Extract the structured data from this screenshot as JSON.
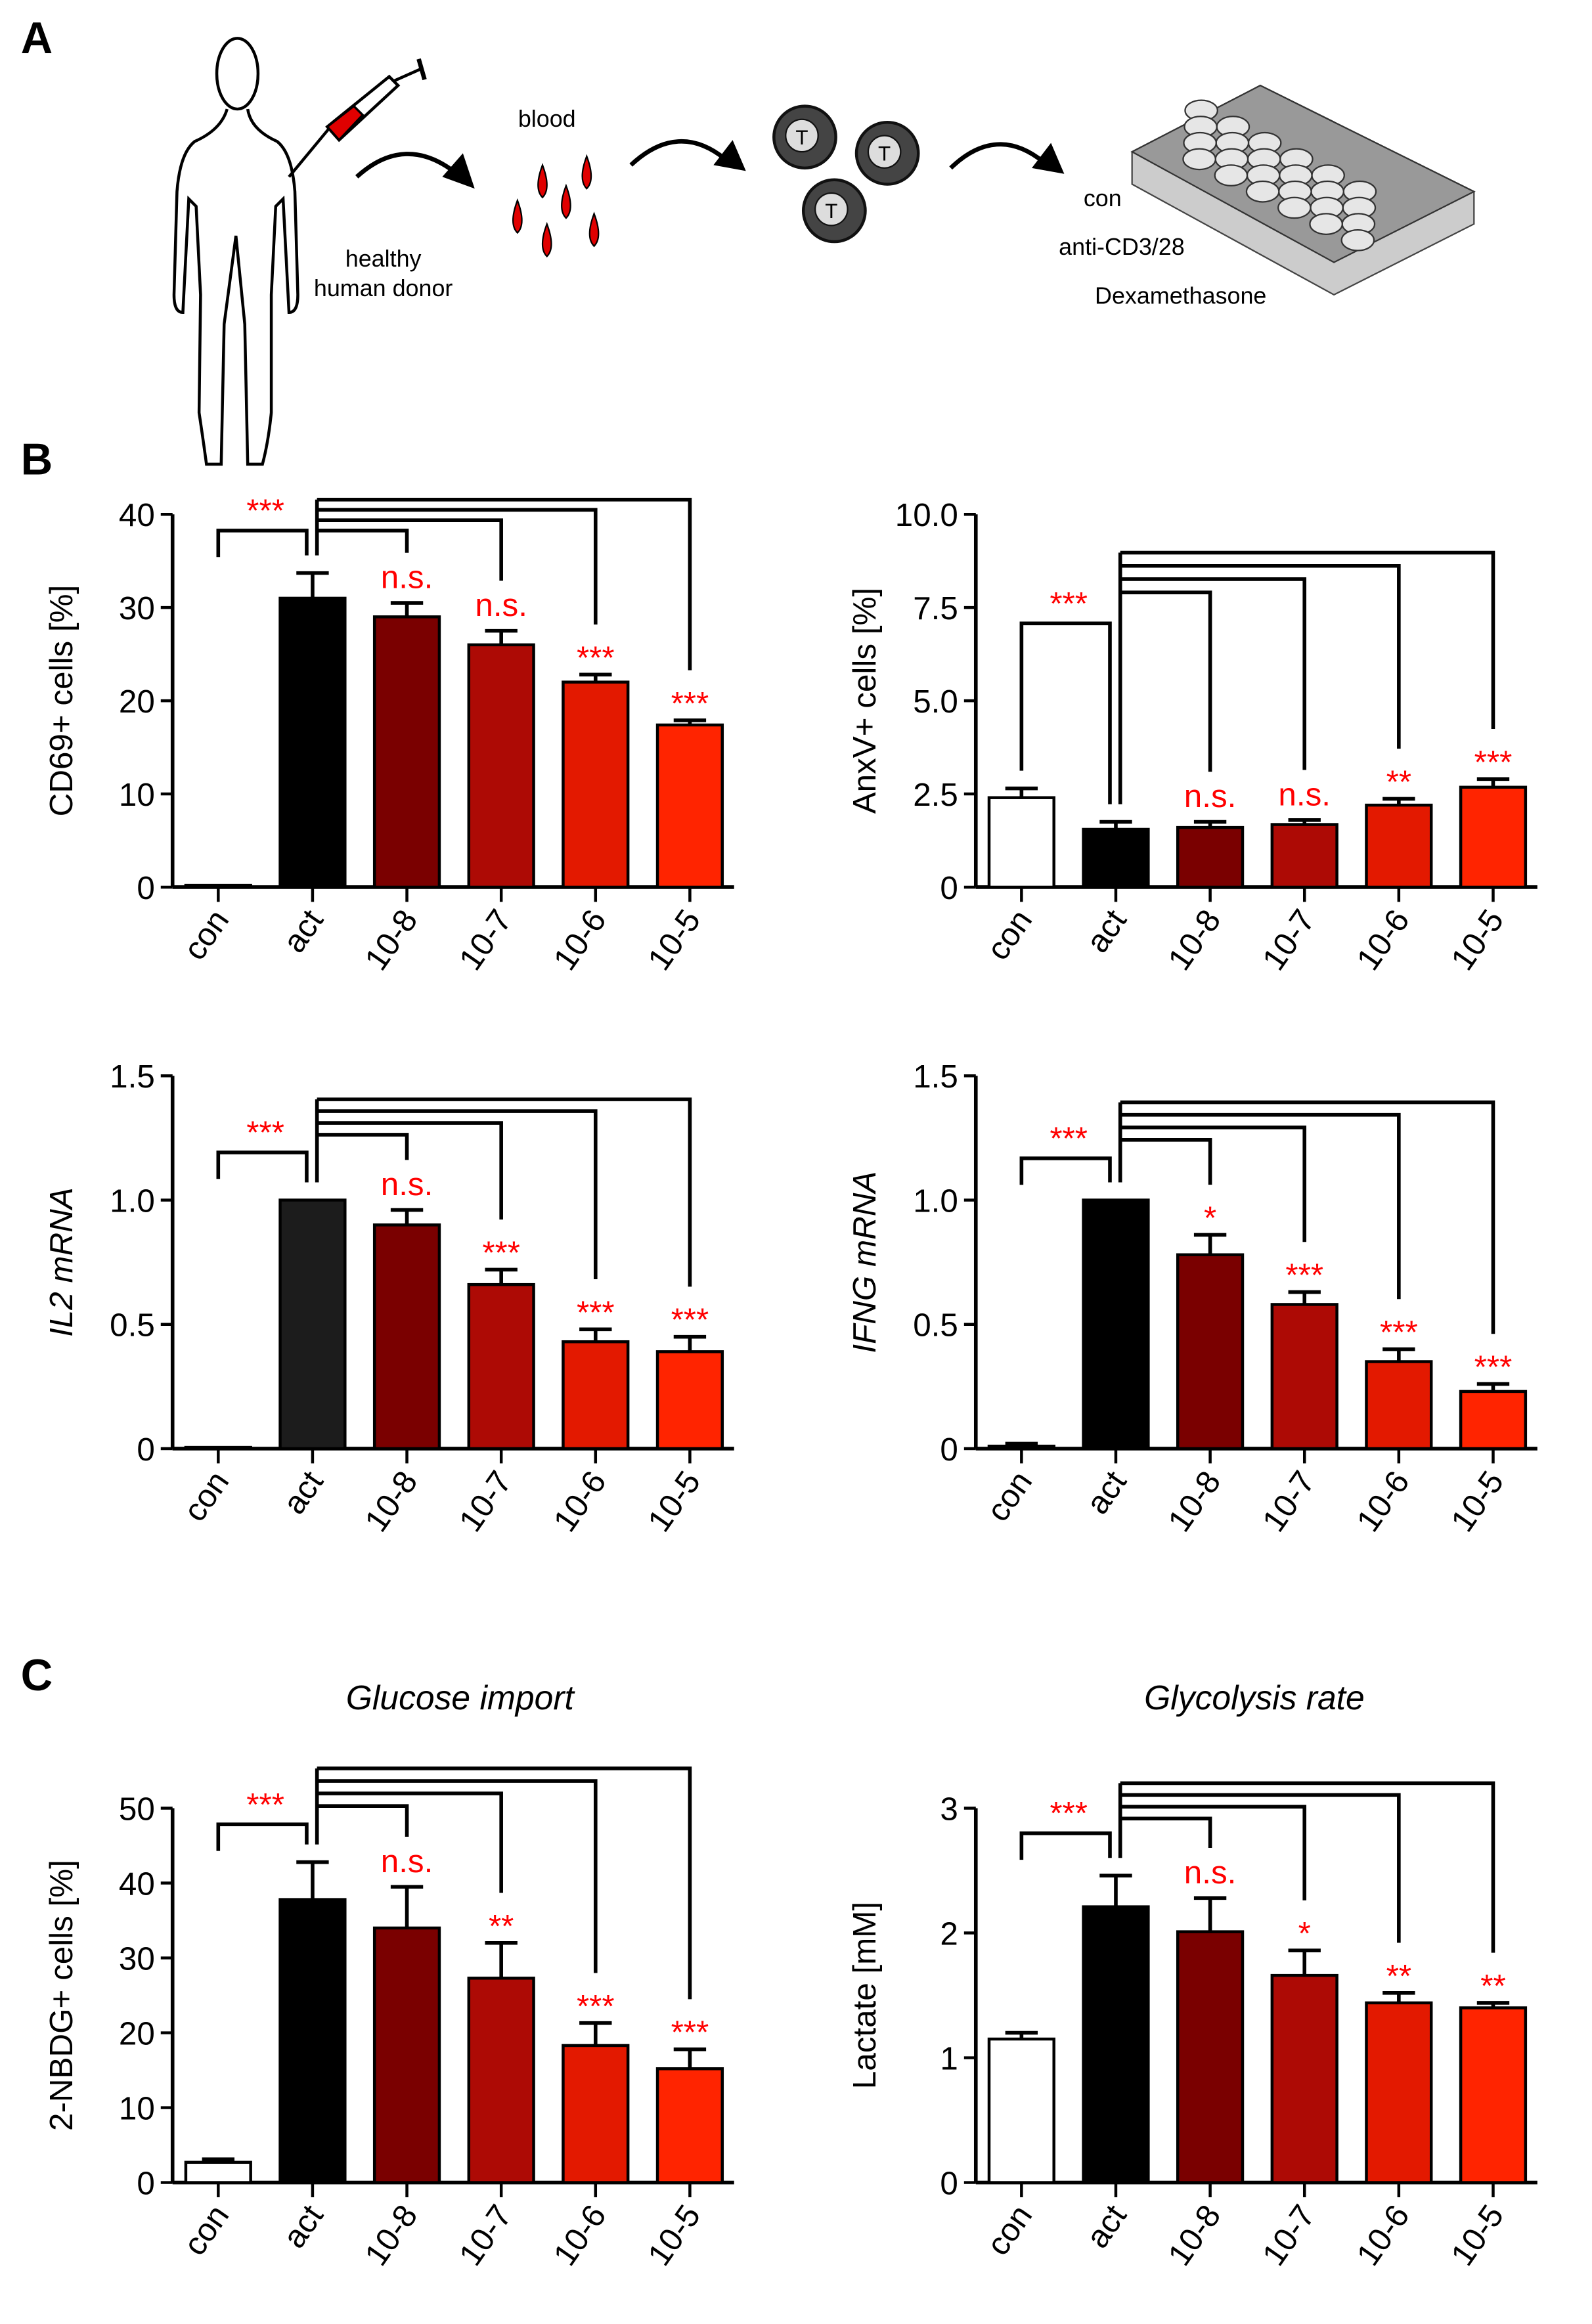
{
  "panels": {
    "a": "A",
    "b": "B",
    "c": "C"
  },
  "schematic": {
    "donor_line1": "healthy",
    "donor_line2": "human donor",
    "blood": "blood",
    "tcell_label": "T",
    "conditions": [
      "con",
      "anti-CD3/28",
      "Dexamethasone"
    ]
  },
  "colors": [
    "#ffffff",
    "#000000",
    "#7a0000",
    "#ad0a05",
    "#e31900",
    "#ff2400"
  ],
  "sig_color": "#ff0000",
  "titles": {
    "glucose": "Glucose import",
    "glycolysis": "Glycolysis rate"
  },
  "chart_data": [
    {
      "type": "bar",
      "ylabel": "CD69+ cells [%]",
      "italic": false,
      "categories": [
        "con",
        "act",
        "10-8",
        "10-7",
        "10-6",
        "10-5"
      ],
      "values": [
        0.2,
        31,
        29,
        26,
        22,
        17.4
      ],
      "errors": [
        0,
        2.7,
        1.5,
        1.5,
        0.8,
        0.5
      ],
      "ylim": [
        0,
        40
      ],
      "ticks": [
        "0",
        "10",
        "20",
        "30",
        "40"
      ],
      "significance": [
        "***",
        "n.s.",
        "n.s.",
        "***",
        "***"
      ]
    },
    {
      "type": "bar",
      "ylabel": "AnxV+ cells [%]",
      "italic": false,
      "categories": [
        "con",
        "act",
        "10-8",
        "10-7",
        "10-6",
        "10-5"
      ],
      "values": [
        2.4,
        1.55,
        1.6,
        1.68,
        2.2,
        2.68
      ],
      "errors": [
        0.25,
        0.2,
        0.15,
        0.12,
        0.17,
        0.22
      ],
      "ylim": [
        0,
        10
      ],
      "ticks": [
        "0",
        "2.5",
        "5.0",
        "7.5",
        "10.0"
      ],
      "significance": [
        "***",
        "n.s.",
        "n.s.",
        "**",
        "***"
      ]
    },
    {
      "type": "bar",
      "ylabel": "IL2 mRNA",
      "italic": true,
      "categories": [
        "con",
        "act",
        "10-8",
        "10-7",
        "10-6",
        "10-5"
      ],
      "values": [
        0.005,
        1.0,
        0.9,
        0.66,
        0.43,
        0.39
      ],
      "errors": [
        0,
        0,
        0.06,
        0.06,
        0.05,
        0.06
      ],
      "ylim": [
        0,
        1.5
      ],
      "ticks": [
        "0",
        "0.5",
        "1.0",
        "1.5"
      ],
      "significance": [
        "***",
        "n.s.",
        "***",
        "***",
        "***"
      ]
    },
    {
      "type": "bar",
      "ylabel": "IFNG mRNA",
      "italic": true,
      "categories": [
        "con",
        "act",
        "10-8",
        "10-7",
        "10-6",
        "10-5"
      ],
      "values": [
        0.01,
        1.0,
        0.78,
        0.58,
        0.35,
        0.23
      ],
      "errors": [
        0.01,
        0,
        0.08,
        0.05,
        0.05,
        0.03
      ],
      "ylim": [
        0,
        1.5
      ],
      "ticks": [
        "0",
        "0.5",
        "1.0",
        "1.5"
      ],
      "significance": [
        "***",
        "*",
        "***",
        "***",
        "***"
      ]
    },
    {
      "type": "bar",
      "title": "Glucose import",
      "ylabel": "2-NBDG+ cells [%]",
      "italic": false,
      "categories": [
        "con",
        "act",
        "10-8",
        "10-7",
        "10-6",
        "10-5"
      ],
      "values": [
        2.7,
        37.8,
        34,
        27.3,
        18.3,
        15.2
      ],
      "errors": [
        0.4,
        5,
        5.5,
        4.7,
        3,
        2.6
      ],
      "ylim": [
        0,
        50
      ],
      "ticks": [
        "0",
        "10",
        "20",
        "30",
        "40",
        "50"
      ],
      "significance": [
        "***",
        "n.s.",
        "**",
        "***",
        "***"
      ]
    },
    {
      "type": "bar",
      "title": "Glycolysis rate",
      "ylabel": "Lactate [mM]",
      "italic": false,
      "categories": [
        "con",
        "act",
        "10-8",
        "10-7",
        "10-6",
        "10-5"
      ],
      "values": [
        1.15,
        2.21,
        2.01,
        1.66,
        1.44,
        1.4
      ],
      "errors": [
        0.05,
        0.25,
        0.27,
        0.2,
        0.08,
        0.04
      ],
      "ylim": [
        0,
        3
      ],
      "ticks": [
        "0",
        "1",
        "2",
        "3"
      ],
      "significance": [
        "***",
        "n.s.",
        "*",
        "**",
        "**"
      ]
    }
  ]
}
